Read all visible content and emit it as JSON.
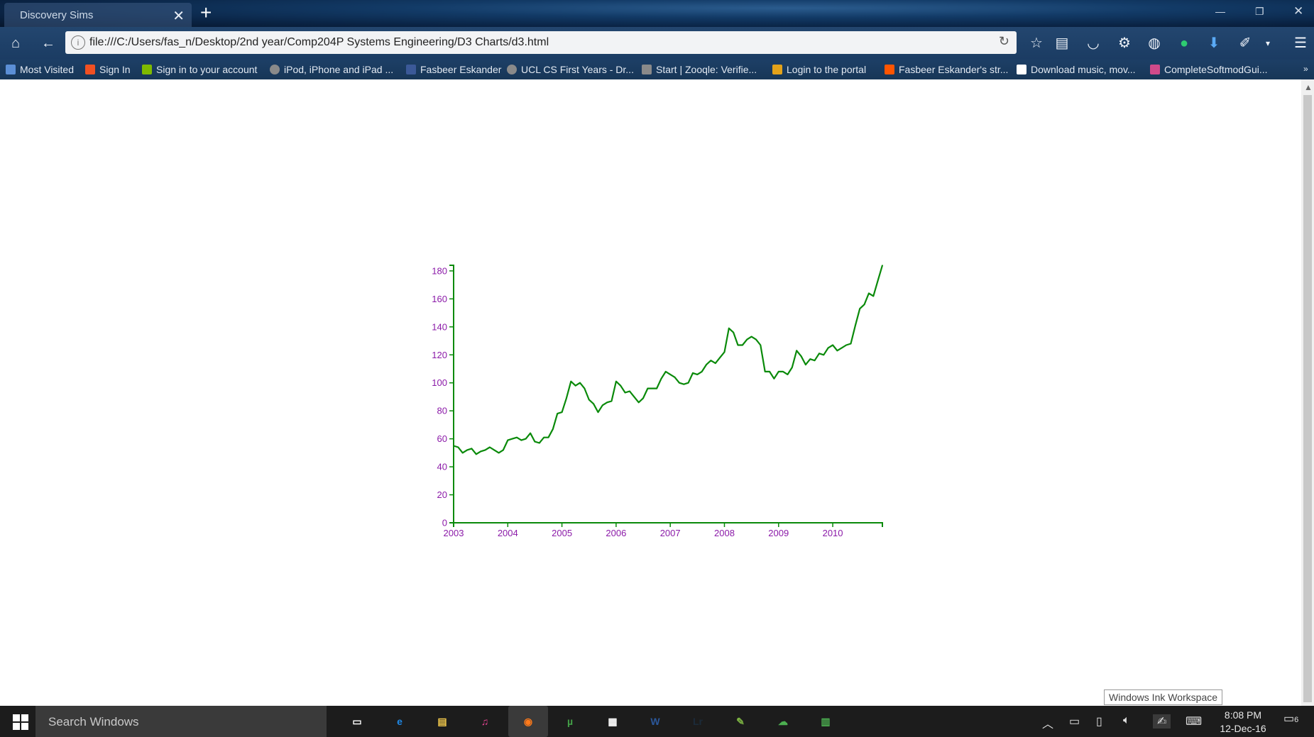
{
  "browser": {
    "tab_title": "Discovery Sims",
    "url": "file:///C:/Users/fas_n/Desktop/2nd year/Comp204P Systems Engineering/D3 Charts/d3.html",
    "bookmarks": [
      {
        "label": "Most Visited",
        "icon": "globe-icon",
        "color": "#5b8fd6"
      },
      {
        "label": "Sign In",
        "icon": "microsoft-icon",
        "color": "#f25022"
      },
      {
        "label": "Sign in to your account",
        "icon": "microsoft-icon",
        "color": "#7fba00"
      },
      {
        "label": "iPod, iPhone and iPad ...",
        "icon": "globe-icon",
        "color": "#8a8a8a"
      },
      {
        "label": "Fasbeer Eskander",
        "icon": "facebook-icon",
        "color": "#3b5998"
      },
      {
        "label": "UCL CS First Years - Dr...",
        "icon": "globe-icon",
        "color": "#8a8a8a"
      },
      {
        "label": "Start | Zooqle: Verifie...",
        "icon": "zooqle-icon",
        "color": "#8a8a8a"
      },
      {
        "label": "Login to the portal",
        "icon": "ucl-icon",
        "color": "#e3a21a"
      },
      {
        "label": "Fasbeer Eskander's str...",
        "icon": "soundcloud-icon",
        "color": "#ff5500"
      },
      {
        "label": "Download music, mov...",
        "icon": "monitor-icon",
        "color": "#ffffff"
      },
      {
        "label": "CompleteSoftmodGui...",
        "icon": "puzzle-icon",
        "color": "#d04a8a"
      }
    ]
  },
  "chart_data": {
    "type": "line",
    "x": [
      "2003-01",
      "2003-02",
      "2003-03",
      "2003-04",
      "2003-05",
      "2003-06",
      "2003-07",
      "2003-08",
      "2003-09",
      "2003-10",
      "2003-11",
      "2003-12",
      "2004-01",
      "2004-02",
      "2004-03",
      "2004-04",
      "2004-05",
      "2004-06",
      "2004-07",
      "2004-08",
      "2004-09",
      "2004-10",
      "2004-11",
      "2004-12",
      "2005-01",
      "2005-02",
      "2005-03",
      "2005-04",
      "2005-05",
      "2005-06",
      "2005-07",
      "2005-08",
      "2005-09",
      "2005-10",
      "2005-11",
      "2005-12",
      "2006-01",
      "2006-02",
      "2006-03",
      "2006-04",
      "2006-05",
      "2006-06",
      "2006-07",
      "2006-08",
      "2006-09",
      "2006-10",
      "2006-11",
      "2006-12",
      "2007-01",
      "2007-02",
      "2007-03",
      "2007-04",
      "2007-05",
      "2007-06",
      "2007-07",
      "2007-08",
      "2007-09",
      "2007-10",
      "2007-11",
      "2007-12",
      "2008-01",
      "2008-02",
      "2008-03",
      "2008-04",
      "2008-05",
      "2008-06",
      "2008-07",
      "2008-08",
      "2008-09",
      "2008-10",
      "2008-11",
      "2008-12",
      "2009-01",
      "2009-02",
      "2009-03",
      "2009-04",
      "2009-05",
      "2009-06",
      "2009-07",
      "2009-08",
      "2009-09",
      "2009-10",
      "2009-11",
      "2009-12",
      "2010-01",
      "2010-02",
      "2010-03",
      "2010-04",
      "2010-05",
      "2010-06",
      "2010-07",
      "2010-08",
      "2010-09",
      "2010-10",
      "2010-11",
      "2010-12"
    ],
    "values": [
      55,
      54,
      50,
      52,
      53,
      49,
      51,
      52,
      54,
      52,
      50,
      52,
      59,
      60,
      61,
      59,
      60,
      64,
      58,
      57,
      61,
      61,
      67,
      78,
      79,
      89,
      101,
      98,
      100,
      96,
      88,
      85,
      79,
      84,
      86,
      87,
      101,
      98,
      93,
      94,
      90,
      86,
      89,
      96,
      96,
      96,
      103,
      108,
      106,
      104,
      100,
      99,
      100,
      107,
      106,
      108,
      113,
      116,
      114,
      118,
      122,
      139,
      136,
      127,
      127,
      131,
      133,
      131,
      127,
      108,
      108,
      103,
      108,
      108,
      106,
      111,
      123,
      119,
      113,
      117,
      116,
      121,
      120,
      125,
      127,
      123,
      125,
      127,
      128,
      141,
      153,
      156,
      164,
      162,
      173,
      184
    ],
    "xticks": [
      "2003",
      "2004",
      "2005",
      "2006",
      "2007",
      "2008",
      "2009",
      "2010"
    ],
    "yticks": [
      0,
      20,
      40,
      60,
      80,
      100,
      120,
      140,
      160,
      180
    ],
    "ylim": [
      0,
      184
    ],
    "xlim": [
      "2003-01",
      "2010-12"
    ],
    "title": "",
    "xlabel": "",
    "ylabel": "",
    "line_color": "#0a8a0a",
    "axis_color": "#0a8a0a",
    "tick_label_color": "#8b1aa8",
    "grid": false
  },
  "inktip": "Windows Ink Workspace",
  "taskbar": {
    "search_placeholder": "Search Windows",
    "apps": [
      {
        "name": "task-view-icon",
        "glyph": "▭",
        "color": "#ffffff"
      },
      {
        "name": "edge-icon",
        "glyph": "e",
        "color": "#1e88e5"
      },
      {
        "name": "file-explorer-icon",
        "glyph": "▤",
        "color": "#f2c94c"
      },
      {
        "name": "itunes-icon",
        "glyph": "♫",
        "color": "#e84393"
      },
      {
        "name": "firefox-icon",
        "glyph": "◉",
        "color": "#ff7a1a"
      },
      {
        "name": "utorrent-icon",
        "glyph": "µ",
        "color": "#43a047"
      },
      {
        "name": "store-icon",
        "glyph": "▦",
        "color": "#ffffff"
      },
      {
        "name": "word-icon",
        "glyph": "W",
        "color": "#2b579a"
      },
      {
        "name": "lightroom-icon",
        "glyph": "Lr",
        "color": "#1b2b3a"
      },
      {
        "name": "game-icon",
        "glyph": "✎",
        "color": "#7cb342"
      },
      {
        "name": "cloud-app-icon",
        "glyph": "☁",
        "color": "#4caf50"
      },
      {
        "name": "notes-app-icon",
        "glyph": "▥",
        "color": "#4caf50"
      }
    ],
    "time": "8:08 PM",
    "date": "12-Dec-16",
    "notification_count": "6"
  }
}
